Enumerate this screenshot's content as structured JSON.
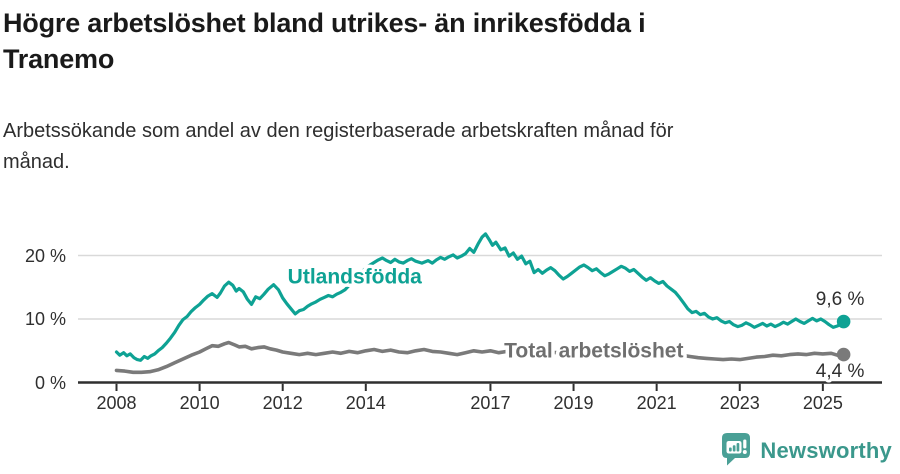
{
  "header": {
    "title_lines": [
      "Högre arbetslöshet bland utrikes- än inrikesfödda i",
      "Tranemo"
    ],
    "subtitle_lines": [
      "Arbetssökande som andel av den registerbaserade arbetskraften månad för",
      "månad."
    ]
  },
  "footer": {
    "brand": "Newsworthy",
    "brand_color": "#3b988c",
    "logo_color": "#4aa096"
  },
  "chart_data": {
    "type": "line",
    "title": "Högre arbetslöshet bland utrikes- än inrikesfödda i Tranemo",
    "subtitle": "Arbetssökande som andel av den registerbaserade arbetskraften månad för månad.",
    "grid": "horizontal-only",
    "background": "#ffffff",
    "gridline_color": "#d9d9d9",
    "axis_color": "#2f2f2f",
    "xlim": [
      2007.6,
      2026.4
    ],
    "ylim": [
      0,
      25
    ],
    "x_ticks": [
      {
        "value": 2008,
        "label": "2008"
      },
      {
        "value": 2010,
        "label": "2010"
      },
      {
        "value": 2012,
        "label": "2012"
      },
      {
        "value": 2014,
        "label": "2014"
      },
      {
        "value": 2017,
        "label": "2017"
      },
      {
        "value": 2019,
        "label": "2019"
      },
      {
        "value": 2021,
        "label": "2021"
      },
      {
        "value": 2023,
        "label": "2023"
      },
      {
        "value": 2025,
        "label": "2025"
      }
    ],
    "y_ticks": [
      {
        "value": 0,
        "label": "0 %"
      },
      {
        "value": 10,
        "label": "10 %"
      },
      {
        "value": 20,
        "label": "20 %"
      }
    ],
    "series": [
      {
        "name": "Utlandsfödda",
        "color": "#0ea294",
        "line_width": 3.2,
        "end_value": 9.6,
        "end_label": "9,6 %",
        "label_anchor": {
          "year": 2012.12,
          "pct": 15.6
        },
        "end_label_anchor": {
          "year": 2026.0,
          "pct": 12.2
        },
        "points": [
          [
            2008.0,
            4.8
          ],
          [
            2008.08,
            4.3
          ],
          [
            2008.17,
            4.7
          ],
          [
            2008.25,
            4.2
          ],
          [
            2008.33,
            4.5
          ],
          [
            2008.42,
            3.9
          ],
          [
            2008.5,
            3.6
          ],
          [
            2008.58,
            3.5
          ],
          [
            2008.67,
            4.1
          ],
          [
            2008.75,
            3.8
          ],
          [
            2008.83,
            4.2
          ],
          [
            2008.92,
            4.5
          ],
          [
            2009.0,
            5.0
          ],
          [
            2009.1,
            5.5
          ],
          [
            2009.2,
            6.2
          ],
          [
            2009.3,
            7.0
          ],
          [
            2009.4,
            7.9
          ],
          [
            2009.5,
            9.0
          ],
          [
            2009.6,
            9.9
          ],
          [
            2009.7,
            10.4
          ],
          [
            2009.8,
            11.2
          ],
          [
            2009.9,
            11.8
          ],
          [
            2010.0,
            12.3
          ],
          [
            2010.1,
            13.0
          ],
          [
            2010.2,
            13.6
          ],
          [
            2010.3,
            14.0
          ],
          [
            2010.42,
            13.4
          ],
          [
            2010.5,
            14.1
          ],
          [
            2010.6,
            15.2
          ],
          [
            2010.7,
            15.8
          ],
          [
            2010.8,
            15.3
          ],
          [
            2010.88,
            14.4
          ],
          [
            2010.95,
            14.8
          ],
          [
            2011.05,
            14.3
          ],
          [
            2011.15,
            13.1
          ],
          [
            2011.25,
            12.3
          ],
          [
            2011.35,
            13.5
          ],
          [
            2011.45,
            13.2
          ],
          [
            2011.55,
            13.9
          ],
          [
            2011.65,
            14.7
          ],
          [
            2011.78,
            15.4
          ],
          [
            2011.9,
            14.6
          ],
          [
            2012.0,
            13.3
          ],
          [
            2012.1,
            12.4
          ],
          [
            2012.2,
            11.6
          ],
          [
            2012.3,
            10.8
          ],
          [
            2012.4,
            11.3
          ],
          [
            2012.5,
            11.5
          ],
          [
            2012.6,
            12.0
          ],
          [
            2012.7,
            12.4
          ],
          [
            2012.8,
            12.7
          ],
          [
            2012.9,
            13.1
          ],
          [
            2013.0,
            13.4
          ],
          [
            2013.1,
            13.7
          ],
          [
            2013.2,
            13.5
          ],
          [
            2013.3,
            13.9
          ],
          [
            2013.4,
            14.2
          ],
          [
            2013.5,
            14.6
          ],
          [
            2013.6,
            15.3
          ],
          [
            2013.7,
            16.0
          ],
          [
            2013.8,
            16.7
          ],
          [
            2013.9,
            17.4
          ],
          [
            2014.0,
            18.0
          ],
          [
            2014.1,
            18.5
          ],
          [
            2014.2,
            18.9
          ],
          [
            2014.3,
            19.3
          ],
          [
            2014.4,
            19.6
          ],
          [
            2014.5,
            19.2
          ],
          [
            2014.6,
            18.9
          ],
          [
            2014.7,
            19.4
          ],
          [
            2014.8,
            19.0
          ],
          [
            2014.9,
            18.8
          ],
          [
            2015.0,
            19.2
          ],
          [
            2015.1,
            19.5
          ],
          [
            2015.2,
            19.1
          ],
          [
            2015.35,
            18.8
          ],
          [
            2015.5,
            19.2
          ],
          [
            2015.6,
            18.8
          ],
          [
            2015.7,
            19.3
          ],
          [
            2015.8,
            19.7
          ],
          [
            2015.9,
            19.4
          ],
          [
            2016.0,
            19.8
          ],
          [
            2016.1,
            20.1
          ],
          [
            2016.2,
            19.6
          ],
          [
            2016.3,
            19.9
          ],
          [
            2016.4,
            20.3
          ],
          [
            2016.5,
            21.1
          ],
          [
            2016.6,
            20.5
          ],
          [
            2016.7,
            21.8
          ],
          [
            2016.8,
            22.9
          ],
          [
            2016.88,
            23.4
          ],
          [
            2016.97,
            22.5
          ],
          [
            2017.05,
            21.6
          ],
          [
            2017.13,
            22.1
          ],
          [
            2017.25,
            20.9
          ],
          [
            2017.35,
            21.2
          ],
          [
            2017.45,
            19.9
          ],
          [
            2017.55,
            20.4
          ],
          [
            2017.65,
            19.4
          ],
          [
            2017.75,
            19.9
          ],
          [
            2017.85,
            18.7
          ],
          [
            2017.95,
            19.1
          ],
          [
            2018.05,
            17.3
          ],
          [
            2018.15,
            17.8
          ],
          [
            2018.25,
            17.2
          ],
          [
            2018.35,
            17.7
          ],
          [
            2018.45,
            18.1
          ],
          [
            2018.55,
            17.6
          ],
          [
            2018.65,
            16.9
          ],
          [
            2018.75,
            16.3
          ],
          [
            2018.85,
            16.7
          ],
          [
            2018.95,
            17.2
          ],
          [
            2019.05,
            17.7
          ],
          [
            2019.15,
            18.2
          ],
          [
            2019.25,
            18.5
          ],
          [
            2019.35,
            18.1
          ],
          [
            2019.45,
            17.6
          ],
          [
            2019.55,
            17.9
          ],
          [
            2019.65,
            17.3
          ],
          [
            2019.75,
            16.8
          ],
          [
            2019.85,
            17.1
          ],
          [
            2019.95,
            17.5
          ],
          [
            2020.05,
            17.9
          ],
          [
            2020.15,
            18.3
          ],
          [
            2020.25,
            18.0
          ],
          [
            2020.35,
            17.5
          ],
          [
            2020.45,
            17.8
          ],
          [
            2020.55,
            17.2
          ],
          [
            2020.65,
            16.6
          ],
          [
            2020.75,
            16.1
          ],
          [
            2020.85,
            16.5
          ],
          [
            2020.95,
            16.0
          ],
          [
            2021.05,
            15.6
          ],
          [
            2021.15,
            15.9
          ],
          [
            2021.25,
            15.2
          ],
          [
            2021.35,
            14.7
          ],
          [
            2021.45,
            14.2
          ],
          [
            2021.55,
            13.4
          ],
          [
            2021.65,
            12.5
          ],
          [
            2021.75,
            11.6
          ],
          [
            2021.85,
            11.0
          ],
          [
            2021.95,
            11.2
          ],
          [
            2022.05,
            10.7
          ],
          [
            2022.15,
            10.9
          ],
          [
            2022.25,
            10.3
          ],
          [
            2022.35,
            10.0
          ],
          [
            2022.45,
            10.2
          ],
          [
            2022.55,
            9.7
          ],
          [
            2022.65,
            9.4
          ],
          [
            2022.75,
            9.6
          ],
          [
            2022.85,
            9.1
          ],
          [
            2022.95,
            8.8
          ],
          [
            2023.05,
            9.0
          ],
          [
            2023.15,
            9.4
          ],
          [
            2023.25,
            9.1
          ],
          [
            2023.35,
            8.7
          ],
          [
            2023.45,
            9.0
          ],
          [
            2023.55,
            9.3
          ],
          [
            2023.65,
            8.9
          ],
          [
            2023.75,
            9.2
          ],
          [
            2023.85,
            8.8
          ],
          [
            2023.95,
            9.1
          ],
          [
            2024.05,
            9.5
          ],
          [
            2024.15,
            9.2
          ],
          [
            2024.25,
            9.6
          ],
          [
            2024.35,
            10.0
          ],
          [
            2024.45,
            9.6
          ],
          [
            2024.55,
            9.3
          ],
          [
            2024.65,
            9.7
          ],
          [
            2024.75,
            10.1
          ],
          [
            2024.85,
            9.7
          ],
          [
            2024.95,
            10.0
          ],
          [
            2025.05,
            9.6
          ],
          [
            2025.15,
            9.1
          ],
          [
            2025.25,
            8.7
          ],
          [
            2025.35,
            8.9
          ],
          [
            2025.42,
            9.2
          ],
          [
            2025.5,
            9.6
          ]
        ]
      },
      {
        "name": "Total arbetslöshet",
        "color": "#7a7a7a",
        "label_color": "#6f6f6f",
        "line_width": 3.6,
        "end_value": 4.4,
        "end_label": "4,4 %",
        "label_anchor": {
          "year": 2017.33,
          "pct": 3.9
        },
        "end_label_anchor": {
          "year": 2026.0,
          "pct": 0.85
        },
        "points": [
          [
            2008.0,
            1.9
          ],
          [
            2008.2,
            1.8
          ],
          [
            2008.4,
            1.6
          ],
          [
            2008.6,
            1.6
          ],
          [
            2008.8,
            1.7
          ],
          [
            2009.0,
            2.0
          ],
          [
            2009.2,
            2.5
          ],
          [
            2009.4,
            3.1
          ],
          [
            2009.6,
            3.7
          ],
          [
            2009.8,
            4.3
          ],
          [
            2010.0,
            4.8
          ],
          [
            2010.15,
            5.3
          ],
          [
            2010.3,
            5.8
          ],
          [
            2010.45,
            5.7
          ],
          [
            2010.6,
            6.1
          ],
          [
            2010.7,
            6.3
          ],
          [
            2010.85,
            5.9
          ],
          [
            2010.95,
            5.6
          ],
          [
            2011.1,
            5.7
          ],
          [
            2011.25,
            5.3
          ],
          [
            2011.4,
            5.5
          ],
          [
            2011.55,
            5.6
          ],
          [
            2011.7,
            5.3
          ],
          [
            2011.85,
            5.1
          ],
          [
            2012.0,
            4.8
          ],
          [
            2012.2,
            4.6
          ],
          [
            2012.4,
            4.4
          ],
          [
            2012.6,
            4.6
          ],
          [
            2012.8,
            4.4
          ],
          [
            2013.0,
            4.6
          ],
          [
            2013.2,
            4.8
          ],
          [
            2013.4,
            4.6
          ],
          [
            2013.6,
            4.9
          ],
          [
            2013.8,
            4.7
          ],
          [
            2014.0,
            5.0
          ],
          [
            2014.2,
            5.2
          ],
          [
            2014.4,
            4.9
          ],
          [
            2014.6,
            5.1
          ],
          [
            2014.8,
            4.8
          ],
          [
            2015.0,
            4.7
          ],
          [
            2015.2,
            5.0
          ],
          [
            2015.4,
            5.2
          ],
          [
            2015.6,
            4.9
          ],
          [
            2015.8,
            4.8
          ],
          [
            2016.0,
            4.6
          ],
          [
            2016.2,
            4.4
          ],
          [
            2016.4,
            4.7
          ],
          [
            2016.6,
            5.0
          ],
          [
            2016.8,
            4.8
          ],
          [
            2017.0,
            5.0
          ],
          [
            2017.2,
            4.7
          ],
          [
            2017.4,
            4.9
          ],
          [
            2017.6,
            4.7
          ],
          [
            2017.8,
            4.5
          ],
          [
            2018.0,
            4.4
          ],
          [
            2018.2,
            4.6
          ],
          [
            2018.4,
            4.8
          ],
          [
            2018.6,
            4.7
          ],
          [
            2018.8,
            5.0
          ],
          [
            2019.0,
            4.8
          ],
          [
            2019.2,
            5.0
          ],
          [
            2019.4,
            5.1
          ],
          [
            2019.6,
            4.9
          ],
          [
            2019.8,
            4.9
          ],
          [
            2020.0,
            5.0
          ],
          [
            2020.2,
            5.2
          ],
          [
            2020.4,
            5.3
          ],
          [
            2020.6,
            5.0
          ],
          [
            2020.8,
            4.8
          ],
          [
            2021.0,
            4.7
          ],
          [
            2021.2,
            4.8
          ],
          [
            2021.4,
            4.6
          ],
          [
            2021.6,
            4.3
          ],
          [
            2021.8,
            4.1
          ],
          [
            2022.0,
            3.9
          ],
          [
            2022.2,
            3.8
          ],
          [
            2022.4,
            3.7
          ],
          [
            2022.6,
            3.6
          ],
          [
            2022.8,
            3.7
          ],
          [
            2023.0,
            3.6
          ],
          [
            2023.2,
            3.8
          ],
          [
            2023.4,
            4.0
          ],
          [
            2023.6,
            4.1
          ],
          [
            2023.8,
            4.3
          ],
          [
            2024.0,
            4.2
          ],
          [
            2024.2,
            4.4
          ],
          [
            2024.4,
            4.5
          ],
          [
            2024.6,
            4.4
          ],
          [
            2024.8,
            4.6
          ],
          [
            2025.0,
            4.5
          ],
          [
            2025.2,
            4.6
          ],
          [
            2025.35,
            4.3
          ],
          [
            2025.5,
            4.4
          ]
        ]
      }
    ]
  }
}
